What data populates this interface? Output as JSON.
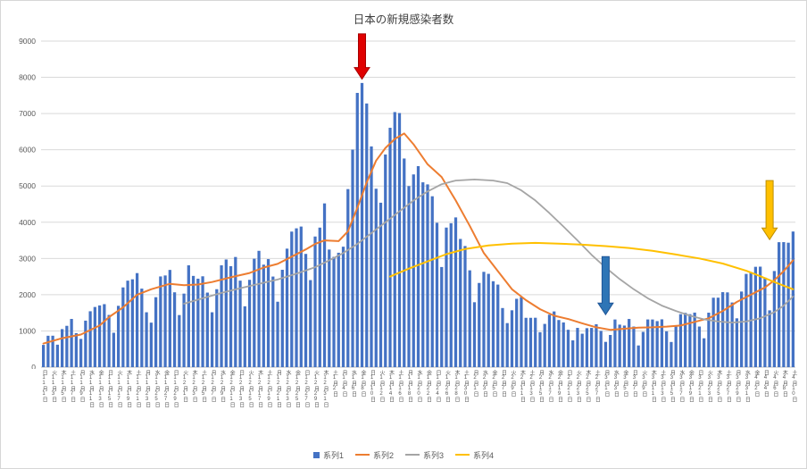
{
  "title": "日本の新規感染者数",
  "colors": {
    "bar": "#4472C4",
    "line2": "#ED7D31",
    "line3": "#A5A5A5",
    "line4": "#FFC000",
    "grid": "#D9D9D9",
    "axis_line": "#BFBFBF",
    "axis_text": "#595959",
    "title_text": "#404040"
  },
  "legend": {
    "items": [
      {
        "label": "系列1",
        "marker": "bar",
        "color": "#4472C4"
      },
      {
        "label": "系列2",
        "marker": "line",
        "color": "#ED7D31"
      },
      {
        "label": "系列3",
        "marker": "line",
        "color": "#A5A5A5"
      },
      {
        "label": "系列4",
        "marker": "line",
        "color": "#FFC000"
      }
    ]
  },
  "chart_data": {
    "type": "bar",
    "subtype": "bar+line combo",
    "title": "日本の新規感染者数",
    "grid": true,
    "legend_position": "bottom",
    "y_axis": {
      "min": 0,
      "max": 9000,
      "step": 1000,
      "tick_labels": [
        "0",
        "1000",
        "2000",
        "3000",
        "4000",
        "5000",
        "6000",
        "7000",
        "8000",
        "9000"
      ]
    },
    "x_axis": {
      "unit": "day",
      "n_points": 161,
      "tick_every_days": 2,
      "tick_labels": [
        "日|11|1",
        "火|11|3",
        "木|11|5",
        "土|11|7",
        "月|11|9",
        "水|11|11",
        "金|11|13",
        "日|11|15",
        "火|11|17",
        "木|11|19",
        "土|11|21",
        "月|11|23",
        "水|11|25",
        "金|11|27",
        "日|11|29",
        "火|12|1",
        "木|12|3",
        "土|12|5",
        "月|12|7",
        "水|12|9",
        "金|12|11",
        "日|12|13",
        "火|12|15",
        "木|12|17",
        "土|12|19",
        "月|12|21",
        "水|12|23",
        "金|12|25",
        "日|12|27",
        "火|12|29",
        "木|12|31",
        "土|1|2",
        "月|1|4",
        "水|1|6",
        "金|1|8",
        "日|1|10",
        "火|1|12",
        "木|1|14",
        "土|1|16",
        "月|1|18",
        "水|1|20",
        "金|1|22",
        "日|1|24",
        "火|1|26",
        "木|1|28",
        "土|1|30",
        "月|2|1",
        "水|2|3",
        "金|2|5",
        "日|2|7",
        "火|2|9",
        "木|2|11",
        "土|2|13",
        "月|2|15",
        "水|2|17",
        "金|2|19",
        "日|2|21",
        "火|2|23",
        "木|2|25",
        "土|2|27",
        "月|3|1",
        "水|3|3",
        "金|3|5",
        "日|3|7",
        "火|3|9",
        "木|3|11",
        "土|3|13",
        "月|3|15",
        "水|3|17",
        "金|3|19",
        "日|3|21",
        "火|3|23",
        "木|3|25",
        "土|3|27",
        "月|3|29",
        "水|3|31",
        "金|4|2",
        "日|4|4",
        "火|4|6",
        "木|4|8",
        "土|4|10"
      ]
    },
    "series": [
      {
        "name": "系列1",
        "type": "bar",
        "color": "#4472C4",
        "values": [
          614,
          867,
          868,
          620,
          1050,
          1141,
          1331,
          939,
          780,
          1284,
          1543,
          1661,
          1704,
          1739,
          1441,
          950,
          1693,
          2201,
          2388,
          2425,
          2596,
          2168,
          1515,
          1229,
          1931,
          2504,
          2531,
          2684,
          2066,
          1438,
          2030,
          2811,
          2519,
          2442,
          2508,
          2058,
          1515,
          2152,
          2811,
          2972,
          2788,
          3041,
          2388,
          1680,
          2410,
          2993,
          3211,
          2829,
          2982,
          2501,
          1806,
          2688,
          3271,
          3742,
          3832,
          3881,
          3126,
          2403,
          3606,
          3852,
          4520,
          3246,
          3045,
          3158,
          3325,
          4915,
          6004,
          7570,
          7844,
          7278,
          6093,
          4925,
          4539,
          5870,
          6607,
          7041,
          7014,
          5759,
          4999,
          5320,
          5549,
          5102,
          5045,
          4717,
          3985,
          2764,
          3853,
          3973,
          4133,
          3539,
          3344,
          2673,
          1792,
          2324,
          2631,
          2576,
          2372,
          2279,
          1632,
          1216,
          1570,
          1887,
          1933,
          1362,
          1362,
          1364,
          965,
          1194,
          1448,
          1538,
          1301,
          1234,
          1032,
          740,
          1084,
          923,
          1076,
          1083,
          1185,
          999,
          698,
          888,
          1316,
          1174,
          1148,
          1330,
          1121,
          599,
          974,
          1317,
          1316,
          1271,
          1320,
          989,
          695,
          1133,
          1463,
          1500,
          1463,
          1506,
          1121,
          797,
          1504,
          1917,
          1918,
          2070,
          2064,
          1785,
          1348,
          2087,
          2574,
          2621,
          2770,
          2774,
          2472,
          1568,
          2653,
          3449,
          3451,
          3435,
          3744
        ]
      },
      {
        "name": "系列2",
        "type": "line",
        "color": "#ED7D31",
        "points": [
          [
            0,
            650
          ],
          [
            4,
            800
          ],
          [
            8,
            900
          ],
          [
            12,
            1150
          ],
          [
            14,
            1380
          ],
          [
            17,
            1650
          ],
          [
            20,
            2000
          ],
          [
            23,
            2150
          ],
          [
            27,
            2300
          ],
          [
            30,
            2260
          ],
          [
            33,
            2280
          ],
          [
            36,
            2350
          ],
          [
            40,
            2480
          ],
          [
            44,
            2600
          ],
          [
            47,
            2750
          ],
          [
            50,
            2850
          ],
          [
            53,
            3050
          ],
          [
            56,
            3250
          ],
          [
            58,
            3400
          ],
          [
            60,
            3500
          ],
          [
            63,
            3480
          ],
          [
            65,
            3750
          ],
          [
            67,
            4400
          ],
          [
            69,
            5100
          ],
          [
            71,
            5700
          ],
          [
            73,
            6050
          ],
          [
            75,
            6300
          ],
          [
            77,
            6450
          ],
          [
            79,
            6150
          ],
          [
            82,
            5600
          ],
          [
            85,
            5250
          ],
          [
            88,
            4600
          ],
          [
            91,
            3900
          ],
          [
            94,
            3150
          ],
          [
            97,
            2650
          ],
          [
            100,
            2150
          ],
          [
            103,
            1850
          ],
          [
            106,
            1600
          ],
          [
            109,
            1420
          ],
          [
            112,
            1330
          ],
          [
            115,
            1210
          ],
          [
            118,
            1100
          ],
          [
            121,
            1030
          ],
          [
            124,
            1060
          ],
          [
            127,
            1090
          ],
          [
            130,
            1100
          ],
          [
            133,
            1120
          ],
          [
            136,
            1150
          ],
          [
            139,
            1250
          ],
          [
            142,
            1350
          ],
          [
            145,
            1550
          ],
          [
            148,
            1800
          ],
          [
            151,
            2000
          ],
          [
            154,
            2200
          ],
          [
            156,
            2400
          ],
          [
            158,
            2650
          ],
          [
            160,
            2950
          ]
        ]
      },
      {
        "name": "系列3",
        "type": "line",
        "color": "#A5A5A5",
        "points": [
          [
            30,
            1750
          ],
          [
            34,
            1900
          ],
          [
            38,
            2050
          ],
          [
            42,
            2180
          ],
          [
            46,
            2300
          ],
          [
            50,
            2420
          ],
          [
            54,
            2580
          ],
          [
            58,
            2760
          ],
          [
            61,
            2950
          ],
          [
            64,
            3150
          ],
          [
            67,
            3400
          ],
          [
            70,
            3700
          ],
          [
            73,
            4000
          ],
          [
            76,
            4300
          ],
          [
            79,
            4600
          ],
          [
            82,
            4850
          ],
          [
            85,
            5050
          ],
          [
            88,
            5150
          ],
          [
            92,
            5180
          ],
          [
            96,
            5150
          ],
          [
            99,
            5080
          ],
          [
            102,
            4880
          ],
          [
            105,
            4600
          ],
          [
            108,
            4250
          ],
          [
            111,
            3880
          ],
          [
            114,
            3500
          ],
          [
            117,
            3100
          ],
          [
            120,
            2750
          ],
          [
            123,
            2430
          ],
          [
            126,
            2150
          ],
          [
            129,
            1900
          ],
          [
            132,
            1700
          ],
          [
            135,
            1550
          ],
          [
            138,
            1420
          ],
          [
            141,
            1320
          ],
          [
            144,
            1260
          ],
          [
            147,
            1230
          ],
          [
            150,
            1260
          ],
          [
            153,
            1350
          ],
          [
            156,
            1520
          ],
          [
            158,
            1700
          ],
          [
            160,
            1950
          ]
        ]
      },
      {
        "name": "系列4",
        "type": "line",
        "color": "#FFC000",
        "points": [
          [
            74,
            2500
          ],
          [
            78,
            2720
          ],
          [
            82,
            2920
          ],
          [
            86,
            3120
          ],
          [
            90,
            3260
          ],
          [
            95,
            3360
          ],
          [
            100,
            3410
          ],
          [
            105,
            3430
          ],
          [
            110,
            3410
          ],
          [
            115,
            3380
          ],
          [
            120,
            3340
          ],
          [
            125,
            3290
          ],
          [
            130,
            3210
          ],
          [
            135,
            3110
          ],
          [
            140,
            3000
          ],
          [
            145,
            2860
          ],
          [
            150,
            2660
          ],
          [
            153,
            2510
          ],
          [
            156,
            2350
          ],
          [
            158,
            2250
          ],
          [
            160,
            2150
          ]
        ]
      }
    ],
    "annotations": [
      {
        "name": "red-down-arrow",
        "day": 68,
        "from_value": 9200,
        "to_value": 7950,
        "fill": "#E00000",
        "stroke": "#A50000"
      },
      {
        "name": "blue-down-arrow",
        "day": 120,
        "from_value": 3050,
        "to_value": 1450,
        "fill": "#2E75B6",
        "stroke": "#1F5597"
      },
      {
        "name": "yellow-down-arrow",
        "day": 155,
        "from_value": 5150,
        "to_value": 3520,
        "fill": "#FFC000",
        "stroke": "#BF9000"
      }
    ]
  }
}
